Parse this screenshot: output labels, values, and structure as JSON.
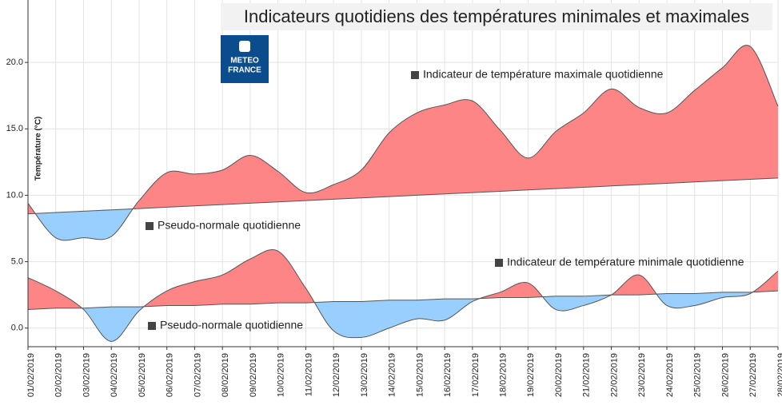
{
  "chart_data": {
    "type": "line",
    "title": "Indicateurs quotidiens des températures minimales et maximales",
    "logo": [
      "METEO",
      "FRANCE"
    ],
    "y_label": "Température (°C)",
    "categories": [
      "01/02/2019",
      "02/02/2019",
      "03/02/2019",
      "04/02/2019",
      "05/02/2019",
      "06/02/2019",
      "07/02/2019",
      "08/02/2019",
      "09/02/2019",
      "10/02/2019",
      "11/02/2019",
      "12/02/2019",
      "13/02/2019",
      "14/02/2019",
      "15/02/2019",
      "16/02/2019",
      "17/02/2019",
      "18/02/2019",
      "19/02/2019",
      "20/02/2019",
      "21/02/2019",
      "22/02/2019",
      "23/02/2019",
      "24/02/2019",
      "25/02/2019",
      "26/02/2019",
      "27/02/2019",
      "28/02/2019"
    ],
    "ylim": [
      -1.4,
      24.7
    ],
    "yticks": [
      {
        "value": 0,
        "label": "0.0"
      },
      {
        "value": 5,
        "label": "5.0"
      },
      {
        "value": 10,
        "label": "10.0"
      },
      {
        "value": 15,
        "label": "15.0"
      },
      {
        "value": 20,
        "label": "20.0"
      }
    ],
    "grid": true,
    "line_color": "#555555",
    "fill_above": "#fd8585",
    "fill_below": "#99cfff",
    "series": [
      {
        "name": "Indicateur de température maximale quotidienne",
        "values": [
          9.4,
          6.8,
          6.8,
          6.9,
          9.6,
          11.7,
          11.6,
          11.9,
          13.0,
          11.8,
          10.2,
          10.8,
          11.9,
          14.7,
          16.2,
          16.8,
          17.1,
          14.9,
          12.8,
          14.8,
          16.2,
          18.0,
          16.6,
          16.2,
          17.9,
          19.6,
          21.2,
          16.7
        ]
      },
      {
        "name": "Pseudo-normale quotidienne",
        "values": [
          8.6,
          8.7,
          8.8,
          8.9,
          9.0,
          9.1,
          9.2,
          9.3,
          9.4,
          9.5,
          9.6,
          9.7,
          9.8,
          9.9,
          10.0,
          10.1,
          10.2,
          10.3,
          10.4,
          10.5,
          10.6,
          10.7,
          10.8,
          10.9,
          11.0,
          11.1,
          11.2,
          11.3
        ]
      },
      {
        "name": "Indicateur de température minimale quotidienne",
        "values": [
          3.8,
          2.8,
          1.4,
          -1.0,
          1.3,
          2.8,
          3.5,
          4.0,
          5.2,
          5.8,
          3.0,
          -0.2,
          -0.7,
          0.0,
          0.7,
          0.6,
          2.0,
          2.7,
          3.4,
          1.4,
          1.7,
          2.5,
          4.0,
          1.7,
          1.7,
          2.3,
          2.6,
          4.3
        ]
      },
      {
        "name": "Pseudo-normale quotidienne",
        "values": [
          1.4,
          1.5,
          1.5,
          1.6,
          1.6,
          1.7,
          1.7,
          1.8,
          1.8,
          1.9,
          1.9,
          2.0,
          2.0,
          2.1,
          2.1,
          2.2,
          2.2,
          2.3,
          2.3,
          2.4,
          2.4,
          2.5,
          2.5,
          2.6,
          2.6,
          2.7,
          2.7,
          2.8
        ]
      }
    ]
  }
}
